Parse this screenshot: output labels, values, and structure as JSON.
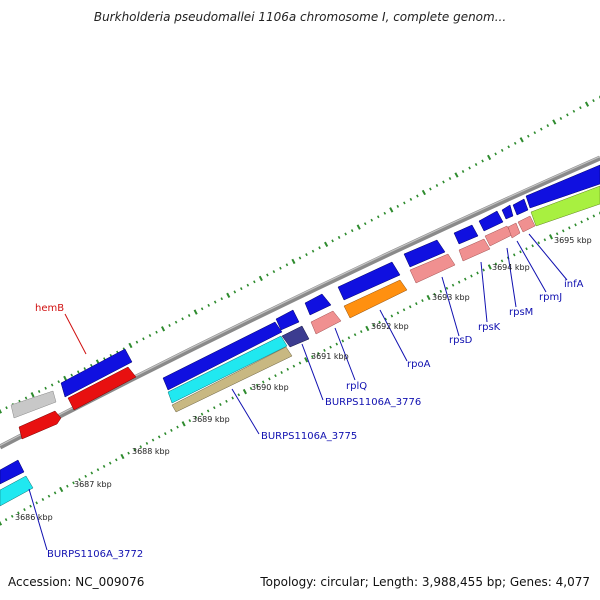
{
  "title": "Burkholderia pseudomallei 1106a chromosome I, complete genom...",
  "footer": {
    "accession": "Accession: NC_009076",
    "summary": "Topology: circular; Length: 3,988,455 bp; Genes: 4,077"
  },
  "colors": {
    "backbone": "#8a8a8a",
    "tick": "#2e8b2e",
    "label_blue": "#1010b0",
    "label_red": "#d01010",
    "gene_blue": "#1010e0",
    "gene_red": "#e81010",
    "gene_gray": "#c8c8c8",
    "gene_cyan": "#20e8f0",
    "gene_tan": "#c8b882",
    "gene_navy": "#3c3c90",
    "gene_pink": "#f09090",
    "gene_orange": "#ff9010",
    "gene_lime": "#a8f040"
  },
  "tick_labels": [
    "3686 kbp",
    "3687 kbp",
    "3688 kbp",
    "3689 kbp",
    "3690 kbp",
    "3691 kbp",
    "3692 kbp",
    "3693 kbp",
    "3694 kbp",
    "3695 kbp"
  ],
  "gene_labels": [
    "hemB",
    "BURPS1106A_3772",
    "BURPS1106A_3775",
    "BURPS1106A_3776",
    "rplQ",
    "rpoA",
    "rpsD",
    "rpsK",
    "rpsM",
    "rpmJ",
    "infA"
  ]
}
